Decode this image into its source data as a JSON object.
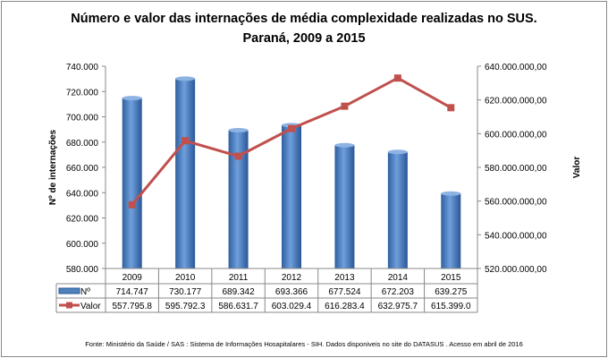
{
  "chart_data": {
    "type": "bar+line",
    "title": [
      "Número e valor das internações de média complexidade realizadas no SUS.",
      "Paraná, 2009 a 2015"
    ],
    "categories": [
      "2009",
      "2010",
      "2011",
      "2012",
      "2013",
      "2014",
      "2015"
    ],
    "series": [
      {
        "name": "Nº",
        "type": "bar",
        "axis": "left",
        "color": "#4F81BD",
        "values": [
          714747,
          730177,
          689342,
          693366,
          677524,
          672203,
          639275
        ],
        "labels": [
          "714.747",
          "730.177",
          "689.342",
          "693.366",
          "677.524",
          "672.203",
          "639.275"
        ]
      },
      {
        "name": "Valor",
        "type": "line",
        "axis": "right",
        "color": "#C0504D",
        "values": [
          557795800,
          595792300,
          586631700,
          603029400,
          616283400,
          632975700,
          615399000
        ],
        "labels": [
          "557.795.8",
          "595.792.3",
          "586.631.7",
          "603.029.4",
          "616.283.4",
          "632.975.7",
          "615.399.0"
        ]
      }
    ],
    "ylabel": "Nº de internações",
    "ylim": [
      580000,
      740000
    ],
    "yticks": [
      "740.000",
      "720.000",
      "700.000",
      "680.000",
      "660.000",
      "640.000",
      "620.000",
      "600.000",
      "580.000"
    ],
    "y2label": "Valor",
    "y2lim": [
      520000000,
      640000000
    ],
    "y2ticks": [
      "640.000.000,00",
      "620.000.000,00",
      "600.000.000,00",
      "580.000.000,00",
      "560.000.000,00",
      "540.000.000,00",
      "520.000.000,00"
    ],
    "grid": false,
    "legend": "data-table",
    "source": "Fonte:  Ministério da Saúde  / SAS : Sistema de Informações Hosapitalares - SIH. Dados disponiveis no site do DATASUS . Acesso em abril de 2016"
  }
}
